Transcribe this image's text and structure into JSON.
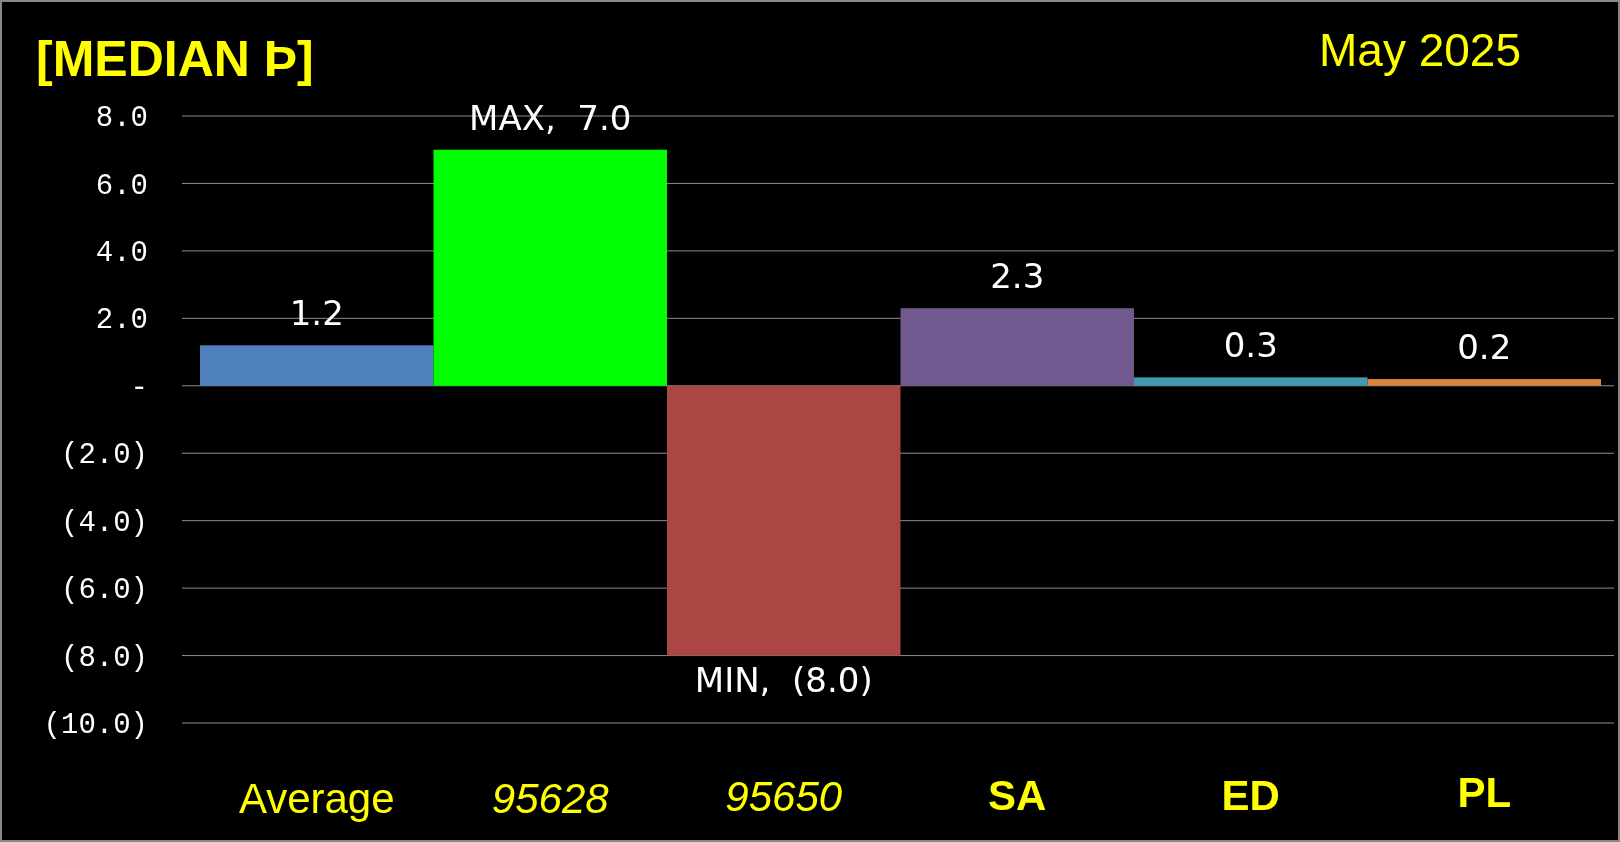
{
  "chart_data": {
    "type": "bar",
    "title": "[MEDIAN Þ]",
    "subtitle": "May 2025",
    "categories": [
      "Average",
      "95628",
      "95650",
      "SA",
      "ED",
      "PL"
    ],
    "values": [
      1.2,
      7.0,
      -8.0,
      2.3,
      0.25,
      0.2
    ],
    "colors": [
      "#4f81bd",
      "#00ff00",
      "#aa4744",
      "#725990",
      "#4399b0",
      "#db843d"
    ],
    "value_labels": [
      "1.2",
      "MAX,  7.0",
      "MIN,  (8.0)",
      "2.3",
      "0.3",
      "0.2"
    ],
    "ylim": [
      -10,
      8
    ],
    "yticks": [
      {
        "value": 8,
        "label": "8.0"
      },
      {
        "value": 6,
        "label": "6.0"
      },
      {
        "value": 4,
        "label": "4.0"
      },
      {
        "value": 2,
        "label": "2.0"
      },
      {
        "value": 0,
        "label": "-"
      },
      {
        "value": -2,
        "label": "(2.0)"
      },
      {
        "value": -4,
        "label": "(4.0)"
      },
      {
        "value": -6,
        "label": "(6.0)"
      },
      {
        "value": -8,
        "label": "(8.0)"
      },
      {
        "value": -10,
        "label": "(10.0)"
      }
    ],
    "grid": "y"
  }
}
